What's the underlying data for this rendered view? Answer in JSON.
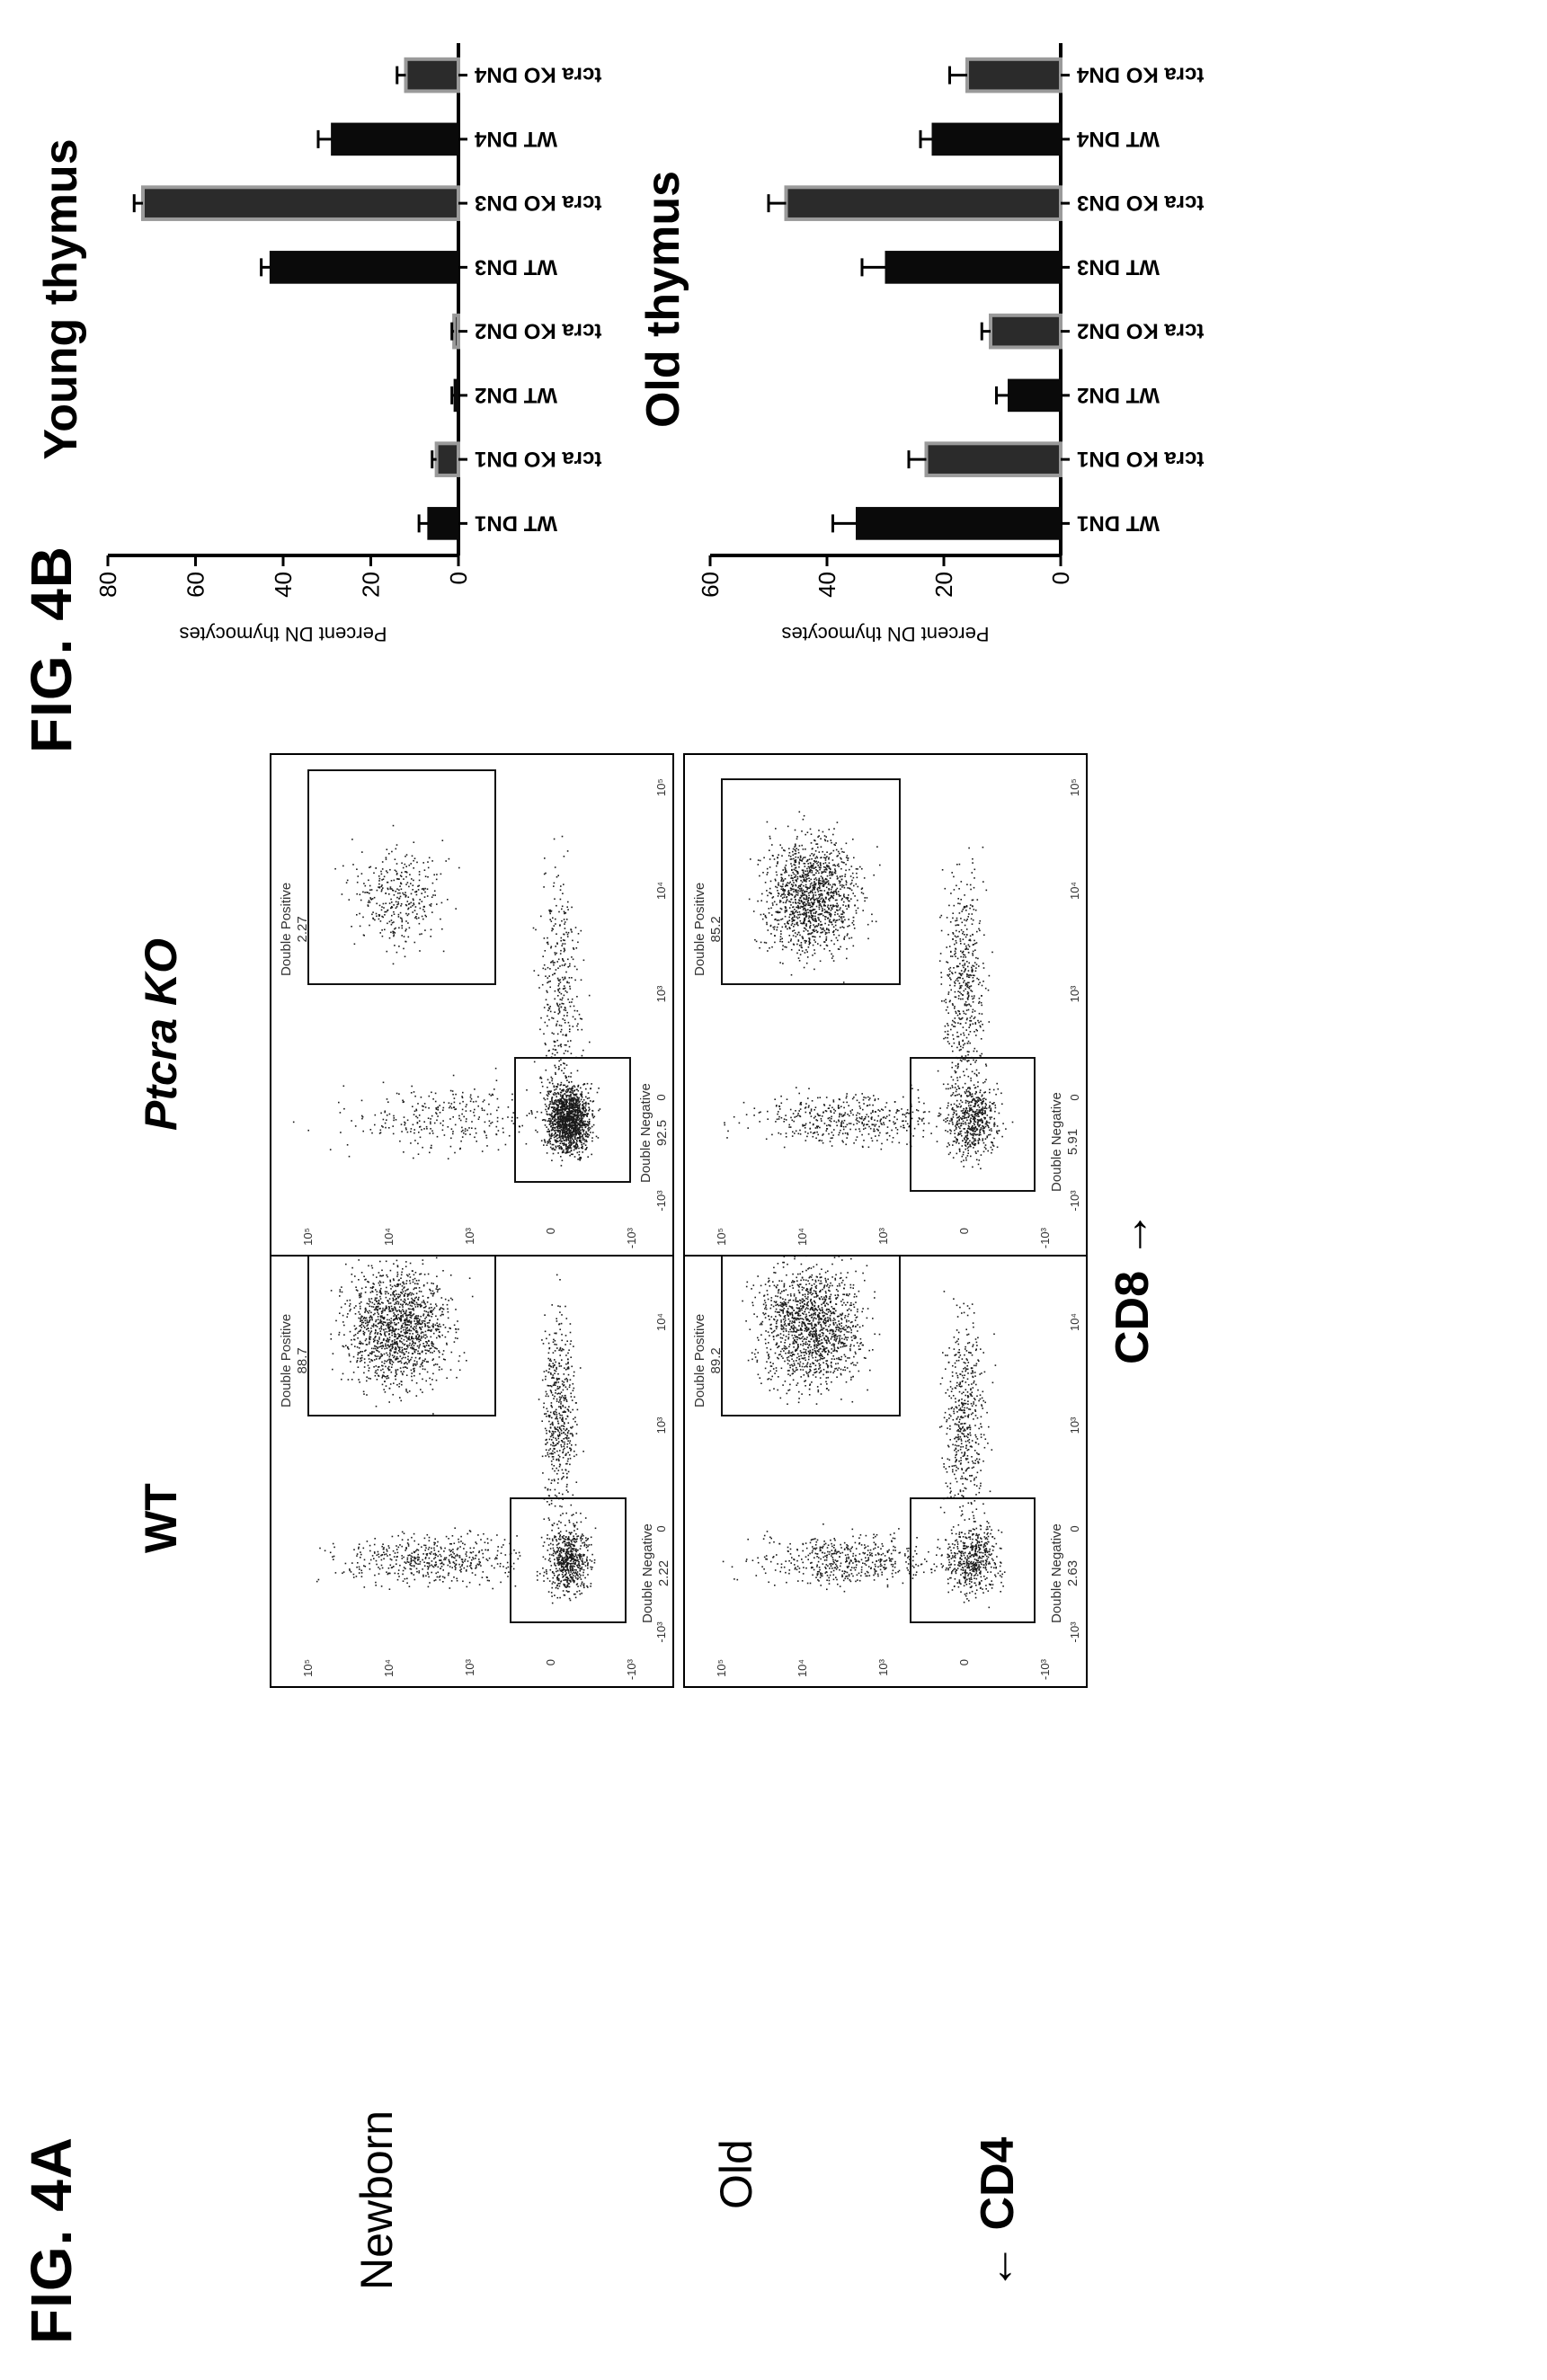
{
  "figure_a": {
    "title": "FIG. 4A",
    "column_labels": [
      "WT",
      "Ptcra KO"
    ],
    "column_label_style": [
      "normal",
      "italic-first-word"
    ],
    "row_labels": [
      "Newborn",
      "Old"
    ],
    "x_axis_label": "CD8 →",
    "y_axis_label": "← CD4",
    "x_ticks": [
      "-10³",
      "0",
      "10³",
      "10⁴",
      "10⁵"
    ],
    "y_ticks": [
      "-10³",
      "0",
      "10³",
      "10⁴",
      "10⁵"
    ],
    "panels": [
      {
        "row": "Newborn",
        "col": "WT",
        "dn_label": "Double Negative",
        "dn_value": "2.22",
        "dp_label": "Double Positive",
        "dp_value": "88.7"
      },
      {
        "row": "Newborn",
        "col": "Ptcra KO",
        "dn_label": "Double Negative",
        "dn_value": "92.5",
        "dp_label": "Double Positive",
        "dp_value": "2.27"
      },
      {
        "row": "Old",
        "col": "WT",
        "dn_label": "Double Negative",
        "dn_value": "2.63",
        "dp_label": "Double Positive",
        "dp_value": "89.2"
      },
      {
        "row": "Old",
        "col": "Ptcra KO",
        "dn_label": "Double Negative",
        "dn_value": "5.91",
        "dp_label": "Double Positive",
        "dp_value": "85.2"
      }
    ]
  },
  "figure_b": {
    "title": "FIG. 4B"
  },
  "colors": {
    "wt_bar": "#0a0a0a",
    "ko_bar": "#2b2b2b",
    "ko_bar_edge": "#9a9a9a",
    "dot": "#1a1a1a"
  },
  "chart_data": [
    {
      "type": "bar",
      "title": "Young thymus",
      "ylabel": "Percent DN thymocytes",
      "xlabel": "",
      "ylim": [
        0,
        80
      ],
      "yticks": [
        0,
        20,
        40,
        60,
        80
      ],
      "categories": [
        "WT DN1",
        "Ptcra KO DN1",
        "WT DN2",
        "Ptcra KO DN2",
        "WT DN3",
        "Ptcra KO DN3",
        "WT DN4",
        "Ptcra KO DN4"
      ],
      "values": [
        7,
        5,
        1,
        1,
        43,
        72,
        29,
        12
      ],
      "errors": [
        2,
        1,
        0.5,
        0.5,
        2,
        2,
        3,
        2
      ],
      "genotype": [
        "WT",
        "KO",
        "WT",
        "KO",
        "WT",
        "KO",
        "WT",
        "KO"
      ],
      "grid": false
    },
    {
      "type": "bar",
      "title": "Old thymus",
      "ylabel": "Percent DN thymocytes",
      "xlabel": "",
      "ylim": [
        0,
        60
      ],
      "yticks": [
        0,
        20,
        40,
        60
      ],
      "categories": [
        "WT DN1",
        "Ptcra KO DN1",
        "WT DN2",
        "Ptcra KO DN2",
        "WT DN3",
        "Ptcra KO DN3",
        "WT DN4",
        "Ptcra KO DN4"
      ],
      "values": [
        35,
        23,
        9,
        12,
        30,
        47,
        22,
        16
      ],
      "errors": [
        4,
        3,
        2,
        1.5,
        4,
        3,
        2,
        3
      ],
      "genotype": [
        "WT",
        "KO",
        "WT",
        "KO",
        "WT",
        "KO",
        "WT",
        "KO"
      ],
      "grid": false
    }
  ]
}
